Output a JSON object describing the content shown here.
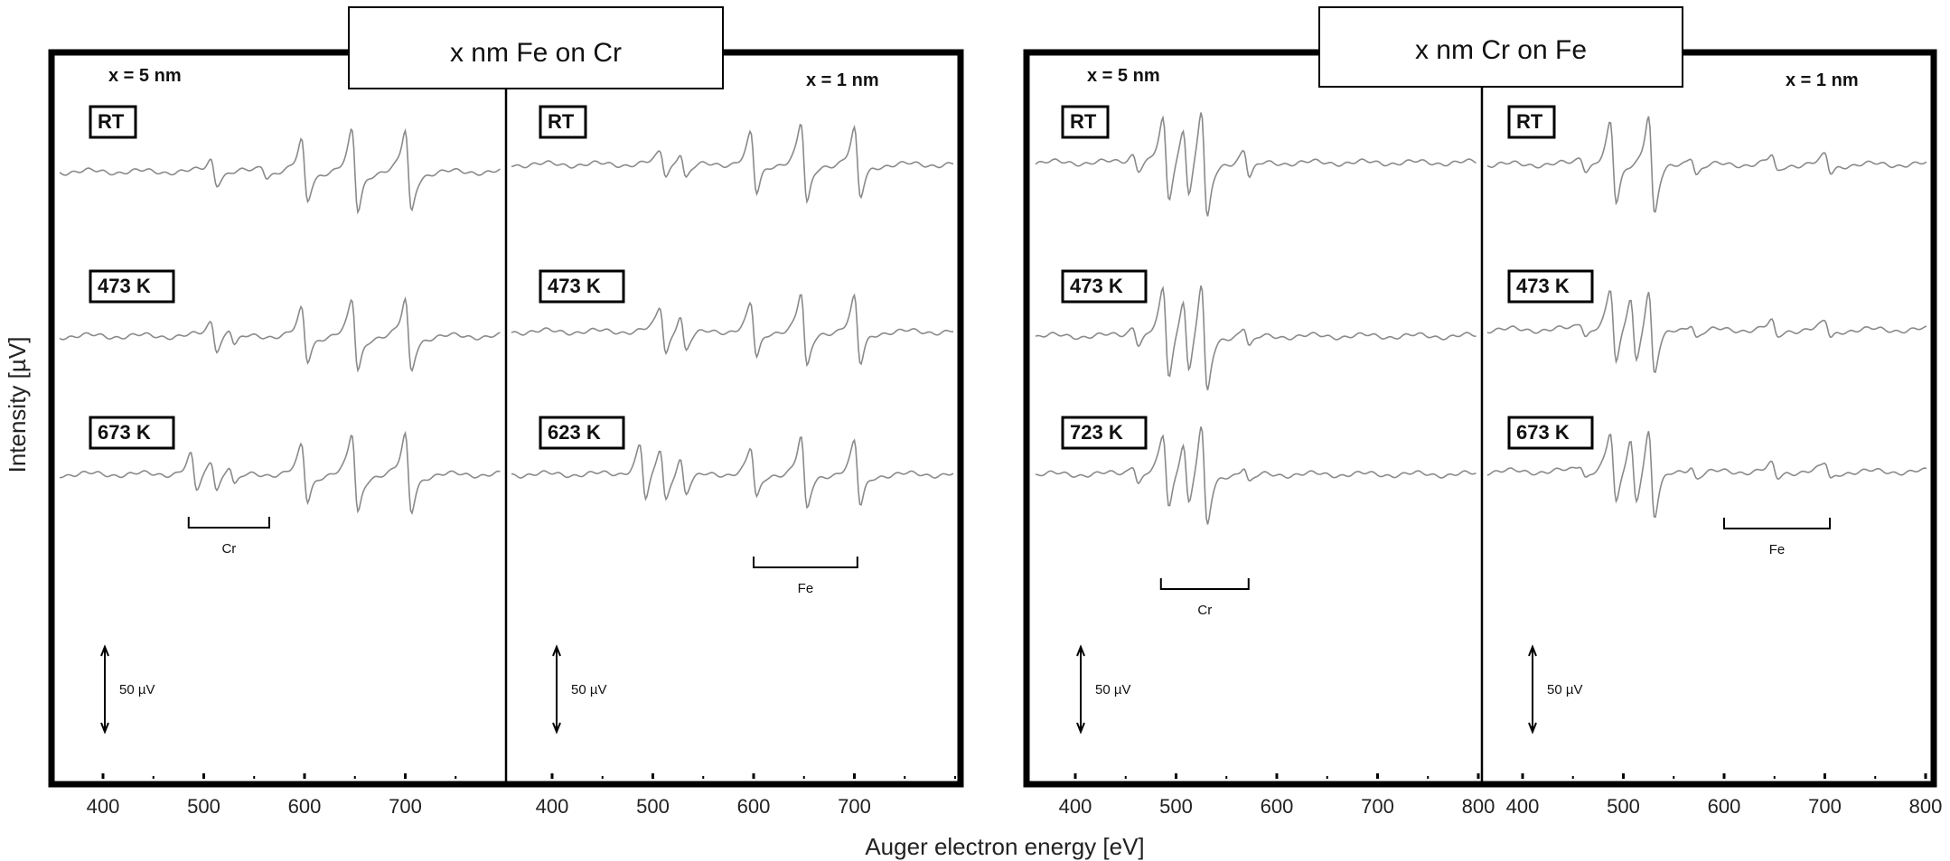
{
  "figure": {
    "ylabel": "Intensity [µV]",
    "xlabel": "Auger electron energy [eV]"
  },
  "chart_data": [
    {
      "type": "line",
      "group_title": "x nm Fe on Cr",
      "panel_label": "x = 5 nm",
      "xlim": [
        350,
        800
      ],
      "x_ticks": [
        400,
        500,
        600,
        700
      ],
      "series": [
        {
          "name": "RT",
          "peaks": [
            [
              510,
              -2.4
            ],
            [
              560,
              -1.0
            ],
            [
              600,
              -6.0
            ],
            [
              650,
              -8.0
            ],
            [
              703,
              -8.0
            ]
          ]
        },
        {
          "name": "473 K",
          "peaks": [
            [
              510,
              -2.8
            ],
            [
              528,
              -1.6
            ],
            [
              600,
              -5.2
            ],
            [
              650,
              -7.0
            ],
            [
              703,
              -7.0
            ]
          ]
        },
        {
          "name": "673 K",
          "peaks": [
            [
              490,
              -3.6
            ],
            [
              510,
              -2.8
            ],
            [
              528,
              -2.0
            ],
            [
              600,
              -5.6
            ],
            [
              650,
              -7.8
            ],
            [
              703,
              -7.6
            ]
          ]
        }
      ],
      "bracket": {
        "label": "Cr",
        "x": [
          485,
          565
        ]
      },
      "scale_bar": "50 µV"
    },
    {
      "type": "line",
      "group_title": "x nm Fe on Cr",
      "panel_label": "x = 1 nm",
      "xlim": [
        350,
        800
      ],
      "x_ticks": [
        400,
        500,
        600,
        700
      ],
      "series": [
        {
          "name": "RT",
          "peaks": [
            [
              510,
              -2.4
            ],
            [
              530,
              -2.6
            ],
            [
              600,
              -6.0
            ],
            [
              650,
              -8.0
            ],
            [
              703,
              -6.8
            ]
          ]
        },
        {
          "name": "473 K",
          "peaks": [
            [
              510,
              -4.6
            ],
            [
              530,
              -3.6
            ],
            [
              600,
              -5.4
            ],
            [
              650,
              -7.4
            ],
            [
              703,
              -6.6
            ]
          ]
        },
        {
          "name": "623 K",
          "peaks": [
            [
              490,
              -5.6
            ],
            [
              510,
              -5.2
            ],
            [
              530,
              -3.6
            ],
            [
              600,
              -5.0
            ],
            [
              650,
              -7.2
            ],
            [
              703,
              -6.4
            ]
          ]
        }
      ],
      "bracket": {
        "label": "Fe",
        "x": [
          600,
          703
        ]
      },
      "scale_bar": "50 µV"
    },
    {
      "type": "line",
      "group_title": "x nm Cr on Fe",
      "panel_label": "x = 5 nm",
      "xlim": [
        350,
        800
      ],
      "x_ticks": [
        400,
        500,
        600,
        700,
        800
      ],
      "series": [
        {
          "name": "RT",
          "peaks": [
            [
              460,
              -1.6
            ],
            [
              490,
              -8.0
            ],
            [
              510,
              -7.0
            ],
            [
              528,
              -11.0
            ],
            [
              570,
              -2.8
            ]
          ]
        },
        {
          "name": "473 K",
          "peaks": [
            [
              460,
              -1.8
            ],
            [
              490,
              -8.8
            ],
            [
              510,
              -7.6
            ],
            [
              528,
              -11.0
            ],
            [
              570,
              -2.0
            ]
          ]
        },
        {
          "name": "723 K",
          "peaks": [
            [
              460,
              -1.8
            ],
            [
              490,
              -7.2
            ],
            [
              510,
              -6.4
            ],
            [
              528,
              -10.0
            ],
            [
              570,
              -1.6
            ]
          ]
        }
      ],
      "bracket": {
        "label": "Cr",
        "x": [
          485,
          572
        ]
      },
      "scale_bar": "50 µV"
    },
    {
      "type": "line",
      "group_title": "x nm Cr on Fe",
      "panel_label": "x = 1 nm",
      "xlim": [
        350,
        800
      ],
      "x_ticks": [
        400,
        500,
        600,
        700,
        800
      ],
      "series": [
        {
          "name": "RT",
          "peaks": [
            [
              460,
              -1.2
            ],
            [
              490,
              -8.0
            ],
            [
              528,
              -10.0
            ],
            [
              570,
              -1.8
            ],
            [
              650,
              -1.6
            ],
            [
              703,
              -1.8
            ]
          ]
        },
        {
          "name": "473 K",
          "peaks": [
            [
              460,
              -1.2
            ],
            [
              490,
              -7.4
            ],
            [
              510,
              -6.6
            ],
            [
              528,
              -8.4
            ],
            [
              570,
              -1.4
            ],
            [
              650,
              -1.6
            ],
            [
              703,
              -1.6
            ]
          ]
        },
        {
          "name": "673 K",
          "peaks": [
            [
              460,
              -1.2
            ],
            [
              490,
              -7.2
            ],
            [
              510,
              -6.4
            ],
            [
              528,
              -8.8
            ],
            [
              570,
              -1.2
            ],
            [
              650,
              -1.4
            ],
            [
              703,
              -1.6
            ]
          ]
        }
      ],
      "bracket": {
        "label": "Fe",
        "x": [
          600,
          705
        ]
      },
      "scale_bar": "50 µV"
    }
  ]
}
